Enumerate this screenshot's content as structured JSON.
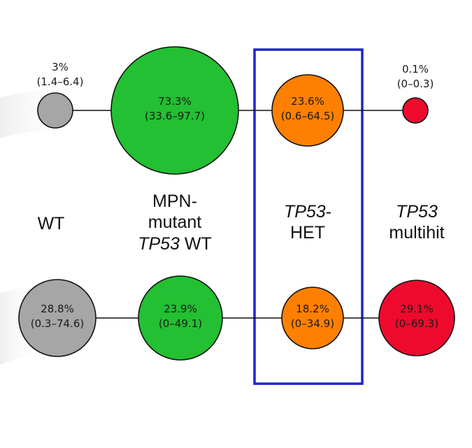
{
  "colors": {
    "wt": "#a6a6a6",
    "mpn": "#22c032",
    "het": "#ff8000",
    "multihit": "#ee0a2d",
    "highlight": "#1f25c9"
  },
  "categories": {
    "wt": {
      "line1": "WT"
    },
    "mpn": {
      "line1": "MPN-",
      "line2": "mutant",
      "line3_italic": "TP53",
      "line3_rest": " WT"
    },
    "het": {
      "line1_italic": "TP53",
      "line1_rest": "-",
      "line2": "HET"
    },
    "multihit": {
      "line1_italic": "TP53",
      "line2": "multihit"
    }
  },
  "top_row": {
    "wt": {
      "value": "3%",
      "range": "(1.4–6.4)"
    },
    "mpn": {
      "value": "73.3%",
      "range": "(33.6–97.7)"
    },
    "het": {
      "value": "23.6%",
      "range": "(0.6–64.5)"
    },
    "multihit": {
      "value": "0.1%",
      "range": "(0–0.3)"
    }
  },
  "bottom_row": {
    "wt": {
      "value": "28.8%",
      "range": "(0.3–74.6)"
    },
    "mpn": {
      "value": "23.9%",
      "range": "(0–49.1)"
    },
    "het": {
      "value": "18.2%",
      "range": "(0–34.9)"
    },
    "multihit": {
      "value": "29.1%",
      "range": "(0–69.3)"
    }
  }
}
